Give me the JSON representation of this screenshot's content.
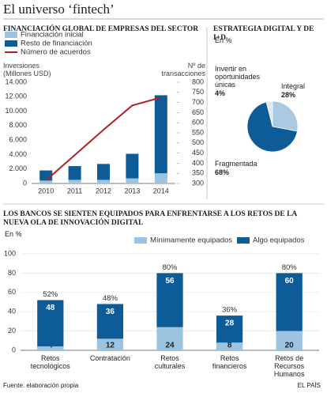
{
  "title": "El universo ‘fintech’",
  "source": "Fuente: elaboración propia",
  "publisher": "EL PAÍS",
  "chart_data": [
    {
      "type": "bar",
      "stacked": true,
      "title": "FINANCIACIÓN GLOBAL DE EMPRESAS DEL SECTOR",
      "y_label": "Inversiones (Millones USD)",
      "y2_label": "Nº de transacciones",
      "categories": [
        "2010",
        "2011",
        "2012",
        "2013",
        "2014"
      ],
      "series": [
        {
          "name": "Financiación inicial",
          "color": "#9cc3e0",
          "values": [
            400,
            500,
            500,
            700,
            1400
          ]
        },
        {
          "name": "Resto de financiación",
          "color": "#0d5c97",
          "values": [
            1400,
            1900,
            2200,
            3400,
            10800
          ]
        },
        {
          "name": "Número de acuerdos",
          "type": "line",
          "axis": "y2",
          "color": "#b51f24",
          "values": [
            315,
            440,
            565,
            685,
            725
          ]
        }
      ],
      "ylim": [
        0,
        14000
      ],
      "yticks": [
        0,
        {
          "value": 2000,
          "label": "2.000"
        },
        {
          "value": 4000,
          "label": "4.000"
        },
        {
          "value": 6000,
          "label": "6.000"
        },
        {
          "value": 8000,
          "label": "8.000"
        },
        {
          "value": 10000,
          "label": "10.000"
        },
        {
          "value": 12000,
          "label": "12.000"
        },
        {
          "value": 14000,
          "label": "14.000"
        }
      ],
      "y2lim": [
        300,
        800
      ],
      "y2ticks": [
        300,
        350,
        400,
        450,
        500,
        550,
        600,
        650,
        700,
        750,
        800
      ]
    },
    {
      "type": "pie",
      "title": "ESTRATEGIA DIGITAL Y DE I+D",
      "subtitle": "En %",
      "categories": [
        "Invertir en oportunidades únicas",
        "Integral",
        "Fragmentada"
      ],
      "values": [
        4,
        28,
        68
      ],
      "value_labels": [
        "4%",
        "28%",
        "68%"
      ],
      "colors": [
        "#dce9f3",
        "#a9c9e2",
        "#0d5c97"
      ]
    },
    {
      "type": "bar",
      "stacked": true,
      "grid": true,
      "data_labels": true,
      "title": "LOS BANCOS SE SIENTEN EQUIPADOS PARA ENFRENTARSE A LOS RETOS DE LA NUEVA OLA DE INNOVACIÓN DIGITAL",
      "subtitle": "En %",
      "categories": [
        "Retos tecnológicos",
        "Contratación",
        "Retos culturales",
        "Retos financieros",
        "Retos de Recursos Humanos"
      ],
      "series": [
        {
          "name": "Mínimamente equipados",
          "color": "#9cc3e0",
          "values": [
            4,
            12,
            24,
            8,
            20
          ]
        },
        {
          "name": "Algo equipados",
          "color": "#0d5c97",
          "values": [
            48,
            36,
            56,
            28,
            60
          ]
        }
      ],
      "totals": [
        52,
        48,
        80,
        36,
        80
      ],
      "total_labels": [
        "52%",
        "48%",
        "80%",
        "36%",
        "80%"
      ],
      "ylim": [
        0,
        100
      ],
      "yticks": [
        0,
        20,
        40,
        60,
        80,
        100
      ]
    }
  ]
}
